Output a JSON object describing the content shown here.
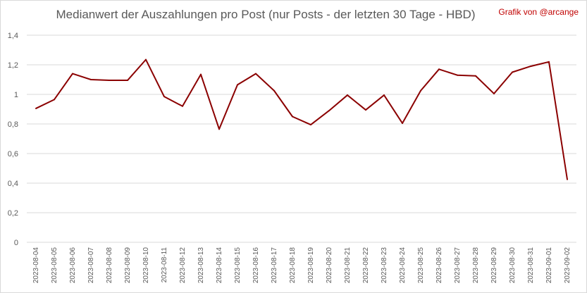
{
  "chart_data": {
    "type": "line",
    "title": "Medianwert der Auszahlungen pro Post (nur Posts - der letzten 30 Tage - HBD)",
    "credit": "Grafik von @arcange",
    "xlabel": "",
    "ylabel": "",
    "ylim": [
      0,
      1.4
    ],
    "yticks": [
      0,
      0.2,
      0.4,
      0.6,
      0.8,
      1,
      1.2,
      1.4
    ],
    "ytick_labels": [
      "0",
      "0,2",
      "0,4",
      "0,6",
      "0,8",
      "1",
      "1,2",
      "1,4"
    ],
    "grid": true,
    "categories": [
      "2023-08-04",
      "2023-08-05",
      "2023-08-06",
      "2023-08-07",
      "2023-08-08",
      "2023-08-09",
      "2023-08-10",
      "2023-08-11",
      "2023-08-12",
      "2023-08-13",
      "2023-08-14",
      "2023-08-15",
      "2023-08-16",
      "2023-08-17",
      "2023-08-18",
      "2023-08-19",
      "2023-08-20",
      "2023-08-21",
      "2023-08-22",
      "2023-08-23",
      "2023-08-24",
      "2023-08-25",
      "2023-08-26",
      "2023-08-27",
      "2023-08-28",
      "2023-08-29",
      "2023-08-30",
      "2023-08-31",
      "2023-09-01",
      "2023-09-02"
    ],
    "series": [
      {
        "color": "#8b0000",
        "values": [
          0.905,
          0.965,
          1.14,
          1.1,
          1.095,
          1.095,
          1.235,
          0.985,
          0.92,
          1.135,
          0.765,
          1.065,
          1.14,
          1.025,
          0.85,
          0.795,
          0.89,
          0.995,
          0.895,
          0.995,
          0.805,
          1.025,
          1.17,
          1.13,
          1.125,
          1.005,
          1.15,
          1.19,
          1.22,
          0.425
        ]
      }
    ]
  }
}
